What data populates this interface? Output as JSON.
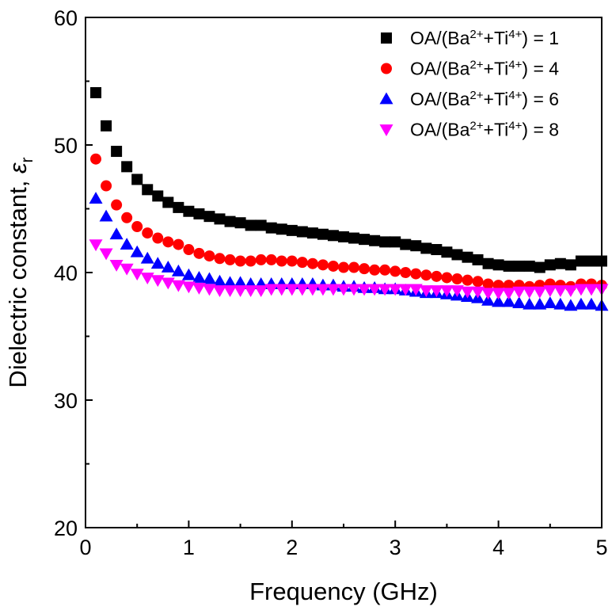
{
  "chart_data": {
    "type": "scatter",
    "xlabel": "Frequency (GHz)",
    "ylabel": {
      "main": "Dielectric constant, ",
      "symbol": "ε",
      "subscript": "r"
    },
    "xlim": [
      0,
      5
    ],
    "ylim": [
      20,
      60
    ],
    "xticks": [
      "0",
      "1",
      "2",
      "3",
      "4",
      "5"
    ],
    "yticks": [
      "20",
      "30",
      "40",
      "50",
      "60"
    ],
    "grid": false,
    "legend_position": "top-right",
    "x": [
      0.1,
      0.2,
      0.3,
      0.4,
      0.5,
      0.6,
      0.7,
      0.8,
      0.9,
      1.0,
      1.1,
      1.2,
      1.3,
      1.4,
      1.5,
      1.6,
      1.7,
      1.8,
      1.9,
      2.0,
      2.1,
      2.2,
      2.3,
      2.4,
      2.5,
      2.6,
      2.7,
      2.8,
      2.9,
      3.0,
      3.1,
      3.2,
      3.3,
      3.4,
      3.5,
      3.6,
      3.7,
      3.8,
      3.9,
      4.0,
      4.1,
      4.2,
      4.3,
      4.4,
      4.5,
      4.6,
      4.7,
      4.8,
      4.9,
      5.0
    ],
    "series": [
      {
        "name": "OA/(Ba²⁺+Ti⁴⁺) = 1",
        "marker": "square",
        "color": "#000000",
        "values": [
          54.1,
          51.5,
          49.5,
          48.3,
          47.3,
          46.5,
          46.0,
          45.5,
          45.1,
          44.8,
          44.6,
          44.4,
          44.2,
          44.0,
          43.9,
          43.7,
          43.7,
          43.5,
          43.4,
          43.3,
          43.2,
          43.1,
          43.0,
          42.9,
          42.8,
          42.7,
          42.6,
          42.5,
          42.4,
          42.4,
          42.2,
          42.1,
          41.9,
          41.8,
          41.6,
          41.4,
          41.2,
          41.0,
          40.7,
          40.6,
          40.5,
          40.5,
          40.5,
          40.4,
          40.6,
          40.7,
          40.6,
          40.9,
          40.9,
          40.9
        ]
      },
      {
        "name": "OA/(Ba²⁺+Ti⁴⁺) = 4",
        "marker": "circle",
        "color": "#ff0000",
        "values": [
          48.9,
          46.8,
          45.3,
          44.3,
          43.6,
          43.1,
          42.7,
          42.4,
          42.2,
          41.8,
          41.5,
          41.3,
          41.1,
          41.0,
          40.9,
          40.9,
          41.0,
          41.0,
          40.9,
          40.9,
          40.8,
          40.7,
          40.6,
          40.5,
          40.4,
          40.4,
          40.3,
          40.2,
          40.2,
          40.1,
          40.0,
          39.9,
          39.8,
          39.7,
          39.6,
          39.5,
          39.4,
          39.3,
          39.1,
          39.0,
          39.0,
          39.0,
          38.9,
          39.0,
          39.1,
          39.0,
          38.9,
          39.1,
          39.1,
          39.0
        ]
      },
      {
        "name": "OA/(Ba²⁺+Ti⁴⁺) = 6",
        "marker": "triangle-up",
        "color": "#0000ff",
        "values": [
          45.8,
          44.4,
          43.0,
          42.2,
          41.6,
          41.1,
          40.7,
          40.4,
          40.1,
          39.8,
          39.6,
          39.5,
          39.3,
          39.2,
          39.2,
          39.1,
          39.1,
          39.1,
          39.1,
          39.1,
          39.1,
          39.1,
          39.0,
          39.0,
          38.9,
          38.9,
          38.8,
          38.8,
          38.7,
          38.7,
          38.6,
          38.5,
          38.4,
          38.4,
          38.3,
          38.2,
          38.1,
          38.0,
          37.8,
          37.7,
          37.7,
          37.6,
          37.5,
          37.5,
          37.6,
          37.5,
          37.4,
          37.5,
          37.5,
          37.4
        ]
      },
      {
        "name": "OA/(Ba²⁺+Ti⁴⁺) = 8",
        "marker": "triangle-down",
        "color": "#ff00ff",
        "values": [
          42.2,
          41.5,
          40.6,
          40.3,
          39.9,
          39.6,
          39.4,
          39.2,
          39.0,
          38.9,
          38.8,
          38.7,
          38.6,
          38.6,
          38.6,
          38.6,
          38.6,
          38.7,
          38.7,
          38.7,
          38.7,
          38.7,
          38.7,
          38.7,
          38.7,
          38.7,
          38.7,
          38.7,
          38.7,
          38.7,
          38.7,
          38.7,
          38.6,
          38.6,
          38.6,
          38.6,
          38.5,
          38.5,
          38.4,
          38.4,
          38.4,
          38.5,
          38.5,
          38.5,
          38.6,
          38.6,
          38.6,
          38.7,
          38.7,
          38.7
        ]
      }
    ]
  }
}
